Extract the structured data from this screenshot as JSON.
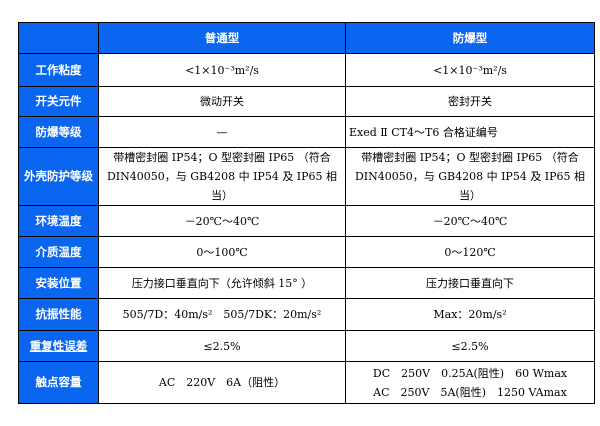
{
  "header": {
    "col0": "",
    "col1": "普通型",
    "col2": "防爆型"
  },
  "rows": [
    {
      "label": "工作粘度",
      "normal": "<1×10⁻³m²/s",
      "explosion": "<1×10⁻³m²/s"
    },
    {
      "label": "开关元件",
      "normal": "微动开关",
      "explosion": "密封开关"
    },
    {
      "label": "防爆等级",
      "normal": "—",
      "explosion": "Exed Ⅱ CT4～T6 合格证编号"
    },
    {
      "label": "外壳防护等级",
      "normal": "带槽密封圈 IP54；O 型密封圈 IP65 （符合 DIN40050，与 GB4208 中 IP54 及 IP65 相当）",
      "explosion": "带槽密封圈 IP54；O 型密封圈 IP65 （符合 DIN40050，与 GB4208 中 IP54 及 IP65 相当）"
    },
    {
      "label": "环境温度",
      "normal": "－20℃～40℃",
      "explosion": "－20℃～40℃"
    },
    {
      "label": "介质温度",
      "normal": "0～100℃",
      "explosion": "0～120℃"
    },
    {
      "label": "安装位置",
      "normal": "压力接口垂直向下（允许倾斜 15° ）",
      "explosion": "压力接口垂直向下"
    },
    {
      "label": "抗振性能",
      "normal": "505/7D：40m/s²　505/7DK：20m/s²",
      "explosion": "Max：20m/s²"
    },
    {
      "label": "重复性误差",
      "normal": "≤2.5%",
      "explosion": "≤2.5%"
    },
    {
      "label": "触点容量",
      "normal": "AC　220V　6A（阻性）",
      "explosion": [
        "DC　250V　0.25A(阻性)　60 Wmax",
        "AC　250V　5A(阻性)　1250 VAmax"
      ]
    }
  ],
  "colors": {
    "label_bg": "#0a66f0",
    "label_text": "#ffffff"
  }
}
